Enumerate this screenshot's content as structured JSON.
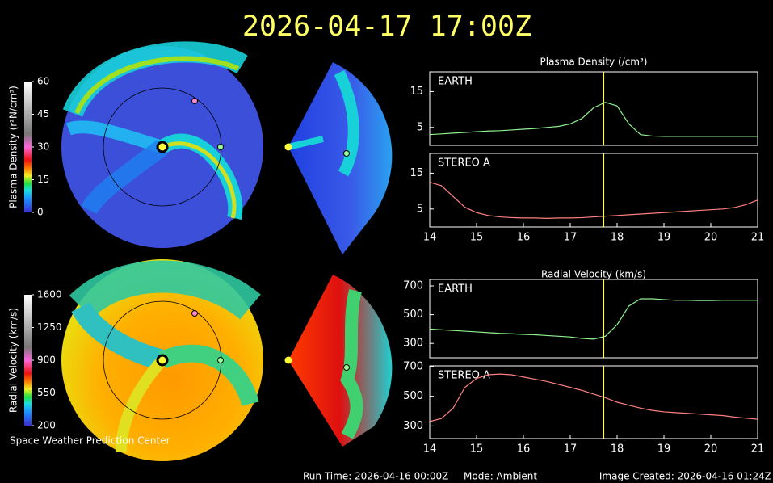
{
  "header": {
    "title": "2026-04-17 17:00Z"
  },
  "colorbars": [
    {
      "label": "Plasma Density (r²N/cm³)",
      "range": [
        0,
        60
      ],
      "ticks": [
        0,
        15,
        30,
        45,
        60
      ]
    },
    {
      "label": "Radial Velocity (km/s)",
      "range": [
        200,
        1600
      ],
      "ticks": [
        200,
        550,
        900,
        1250,
        1600
      ]
    }
  ],
  "chart_data": [
    {
      "type": "line",
      "title": "Plasma Density (/cm³)",
      "xlim": [
        14,
        21
      ],
      "ylim": [
        0,
        20.5
      ],
      "yticks": [
        5,
        15
      ],
      "marker_x": 17.708,
      "x": [
        14,
        14.25,
        14.5,
        14.75,
        15,
        15.25,
        15.5,
        15.75,
        16,
        16.25,
        16.5,
        16.75,
        17,
        17.25,
        17.5,
        17.75,
        18,
        18.25,
        18.5,
        18.75,
        19,
        19.25,
        19.5,
        19.75,
        20,
        20.25,
        20.5,
        20.75,
        21
      ],
      "series": [
        {
          "name": "EARTH",
          "color": "#8ef08e",
          "values": [
            3.0,
            3.2,
            3.4,
            3.6,
            3.8,
            4.0,
            4.1,
            4.3,
            4.5,
            4.7,
            5.0,
            5.3,
            6.0,
            7.5,
            10.5,
            12.0,
            11.0,
            6.0,
            3.0,
            2.6,
            2.5,
            2.5,
            2.5,
            2.5,
            2.5,
            2.5,
            2.5,
            2.5,
            2.5
          ]
        }
      ]
    },
    {
      "type": "line",
      "xlim": [
        14,
        21
      ],
      "xticks": [
        14,
        15,
        16,
        17,
        18,
        19,
        20,
        21
      ],
      "ylim": [
        0,
        20.5
      ],
      "yticks": [
        5,
        15
      ],
      "marker_x": 17.708,
      "x": [
        14,
        14.25,
        14.5,
        14.75,
        15,
        15.25,
        15.5,
        15.75,
        16,
        16.25,
        16.5,
        16.75,
        17,
        17.25,
        17.5,
        17.75,
        18,
        18.25,
        18.5,
        18.75,
        19,
        19.25,
        19.5,
        19.75,
        20,
        20.25,
        20.5,
        20.75,
        21
      ],
      "series": [
        {
          "name": "STEREO A",
          "color": "#ff8080",
          "values": [
            12.5,
            11.5,
            8.5,
            5.5,
            4.0,
            3.2,
            2.8,
            2.6,
            2.5,
            2.5,
            2.4,
            2.5,
            2.5,
            2.6,
            2.8,
            3.0,
            3.2,
            3.4,
            3.6,
            3.8,
            4.0,
            4.2,
            4.4,
            4.6,
            4.8,
            5.0,
            5.4,
            6.2,
            7.5
          ]
        }
      ]
    },
    {
      "type": "line",
      "title": "Radial Velocity (km/s)",
      "xlim": [
        14,
        21
      ],
      "ylim": [
        200,
        745
      ],
      "yticks": [
        300,
        500,
        700
      ],
      "marker_x": 17.708,
      "x": [
        14,
        14.25,
        14.5,
        14.75,
        15,
        15.25,
        15.5,
        15.75,
        16,
        16.25,
        16.5,
        16.75,
        17,
        17.25,
        17.5,
        17.75,
        18,
        18.25,
        18.5,
        18.75,
        19,
        19.25,
        19.5,
        19.75,
        20,
        20.25,
        20.5,
        20.75,
        21
      ],
      "series": [
        {
          "name": "EARTH",
          "color": "#8ef08e",
          "values": [
            400,
            395,
            390,
            385,
            380,
            375,
            370,
            367,
            363,
            360,
            355,
            350,
            345,
            335,
            330,
            350,
            430,
            560,
            610,
            610,
            605,
            600,
            600,
            598,
            598,
            600,
            600,
            600,
            600
          ]
        }
      ]
    },
    {
      "type": "line",
      "xlim": [
        14,
        21
      ],
      "xticks": [
        14,
        15,
        16,
        17,
        18,
        19,
        20,
        21
      ],
      "ylim": [
        215,
        705
      ],
      "yticks": [
        300,
        500,
        700
      ],
      "marker_x": 17.708,
      "x": [
        14,
        14.25,
        14.5,
        14.75,
        15,
        15.25,
        15.5,
        15.75,
        16,
        16.25,
        16.5,
        16.75,
        17,
        17.25,
        17.5,
        17.75,
        18,
        18.25,
        18.5,
        18.75,
        19,
        19.25,
        19.5,
        19.75,
        20,
        20.25,
        20.5,
        20.75,
        21
      ],
      "series": [
        {
          "name": "STEREO A",
          "color": "#ff8080",
          "values": [
            330,
            350,
            420,
            560,
            620,
            645,
            650,
            645,
            630,
            615,
            600,
            580,
            560,
            540,
            515,
            490,
            460,
            440,
            420,
            405,
            395,
            390,
            385,
            380,
            375,
            370,
            360,
            352,
            345
          ]
        }
      ]
    }
  ],
  "footer": {
    "left": "Space Weather Prediction Center",
    "run_time": "Run Time: 2026-04-16 00:00Z",
    "mode": "Mode: Ambient",
    "created": "Image Created: 2026-04-16 01:24Z"
  }
}
